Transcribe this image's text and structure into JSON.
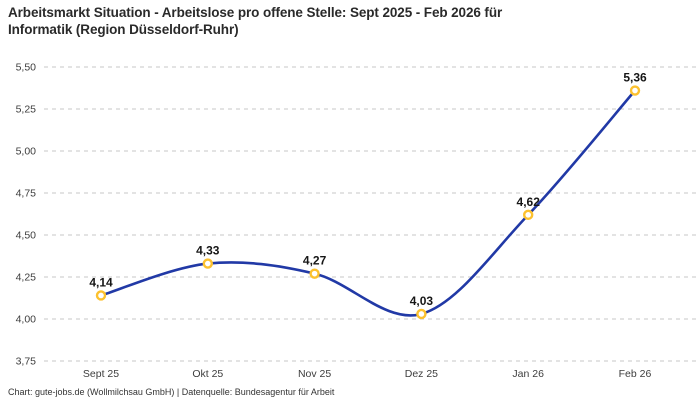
{
  "header": {
    "title_lines": [
      "Arbeitsmarkt Situation - Arbeitslose pro offene Stelle: Sept 2025 - Feb 2026 für",
      "Informatik (Region Düsseldorf-Ruhr)"
    ]
  },
  "chart_data": {
    "type": "line",
    "title": "Arbeitsmarkt Situation - Arbeitslose pro offene Stelle: Sept 2025 - Feb 2026 für Informatik (Region Düsseldorf-Ruhr)",
    "categories": [
      "Sept 25",
      "Okt 25",
      "Nov 25",
      "Dez 25",
      "Jan 26",
      "Feb 26"
    ],
    "values": [
      4.14,
      4.33,
      4.27,
      4.03,
      4.62,
      5.36
    ],
    "value_labels": [
      "4,14",
      "4,33",
      "4,27",
      "4,03",
      "4,62",
      "5,36"
    ],
    "ylim": [
      3.75,
      5.5
    ],
    "ytick_step": 0.25,
    "ytick_labels": [
      "3,75",
      "4,00",
      "4,25",
      "4,50",
      "4,75",
      "5,00",
      "5,25",
      "5,50"
    ],
    "grid": "horizontal-dashed",
    "legend": "none",
    "colors": {
      "line": "#2139a6",
      "marker_ring": "#fcc12e",
      "marker_fill": "#ffffff",
      "grid": "#c7c7c7",
      "tick_text": "#3d3d3d",
      "value_text": "#161616"
    }
  },
  "footer": {
    "attribution": "Chart: gute-jobs.de (Wollmilchsau GmbH) | Datenquelle: Bundesagentur für Arbeit"
  }
}
